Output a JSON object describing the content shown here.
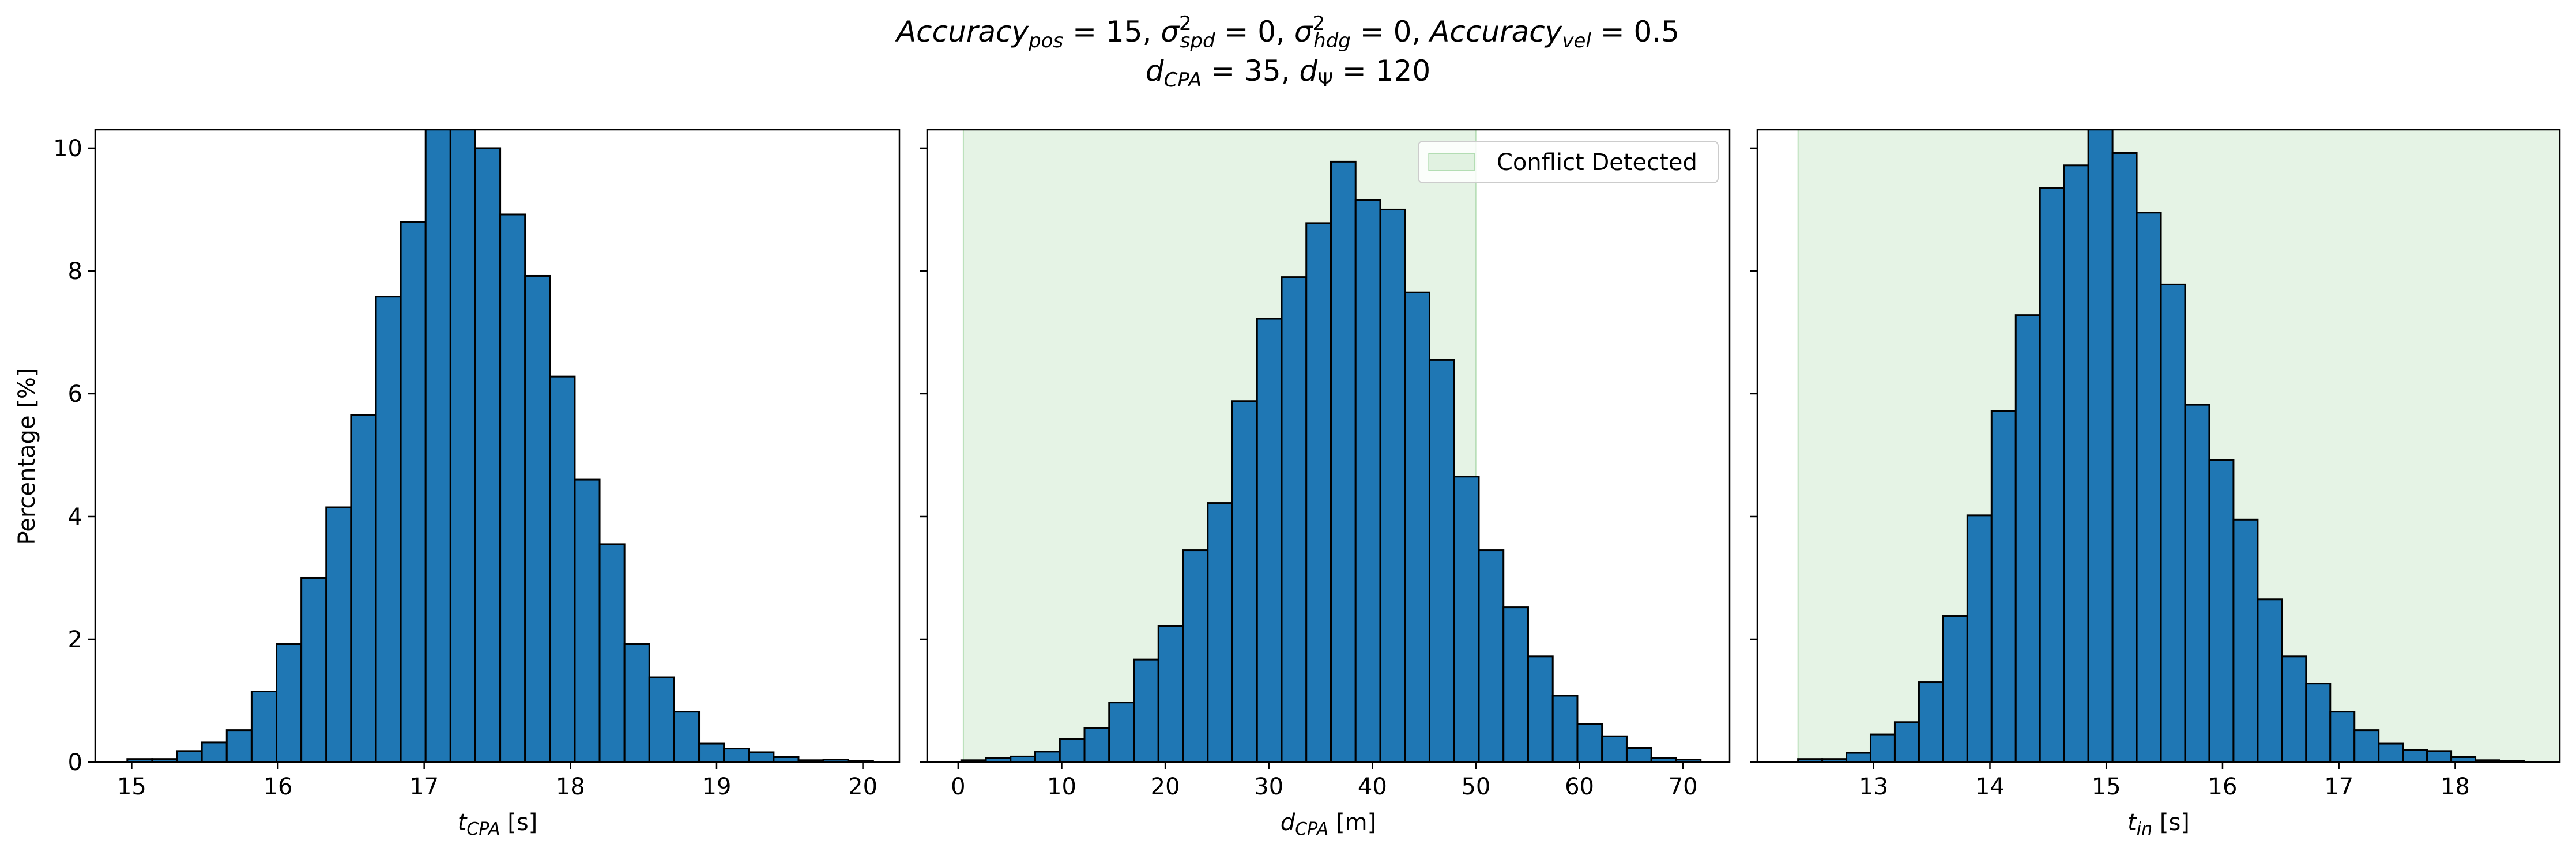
{
  "figure": {
    "title_lines": [
      "Accuracy_pos = 15, σ²_spd = 0, σ²_hdg = 0, Accuracy_vel = 0.5",
      "d_CPA = 35, d_Ψ = 120"
    ],
    "bar_color": "#1f77b4",
    "edge_color": "#000000",
    "shade_color": "#2ca02c"
  },
  "chart_data": [
    {
      "type": "bar",
      "xlabel": "t_CPA [s]",
      "ylabel": "Percentage [%]",
      "xlim": [
        14.75,
        20.25
      ],
      "ylim": [
        0,
        10.3
      ],
      "grid": false,
      "xticks": [
        15,
        16,
        17,
        18,
        19,
        20
      ],
      "yticks": [
        0,
        2,
        4,
        6,
        8,
        10
      ],
      "bin_start": 14.97,
      "bin_width": 0.17,
      "values": [
        0.05,
        0.05,
        0.18,
        0.32,
        0.52,
        1.15,
        1.92,
        3.0,
        4.15,
        5.65,
        7.58,
        8.8,
        10.4,
        10.4,
        10.0,
        8.92,
        7.92,
        6.28,
        4.6,
        3.55,
        1.92,
        1.38,
        0.82,
        0.3,
        0.22,
        0.16,
        0.08,
        0.03,
        0.04,
        0.02
      ]
    },
    {
      "type": "bar",
      "xlabel": "d_CPA [m]",
      "xlim": [
        -3.0,
        74.5
      ],
      "ylim": [
        0,
        10.3
      ],
      "grid": false,
      "xticks": [
        0,
        10,
        20,
        30,
        40,
        50,
        60,
        70
      ],
      "yticks": [
        0,
        2,
        4,
        6,
        8,
        10
      ],
      "bin_start": 0.3,
      "bin_width": 2.38,
      "values": [
        0.03,
        0.07,
        0.09,
        0.17,
        0.38,
        0.55,
        0.97,
        1.67,
        2.22,
        3.45,
        4.22,
        5.88,
        7.22,
        7.9,
        8.78,
        9.78,
        9.15,
        9.0,
        7.65,
        6.55,
        4.65,
        3.45,
        2.52,
        1.72,
        1.08,
        0.62,
        0.42,
        0.23,
        0.07,
        0.04
      ],
      "shaded_region": {
        "x_range": [
          0.5,
          50.0
        ],
        "legend_label": "Conflict Detected"
      },
      "legend": {
        "position": "top-right",
        "entries": [
          "Conflict Detected"
        ]
      }
    },
    {
      "type": "bar",
      "xlabel": "t_in [s]",
      "xlim": [
        12.0,
        18.9
      ],
      "ylim": [
        0,
        10.3
      ],
      "grid": false,
      "xticks": [
        13,
        14,
        15,
        16,
        17,
        18
      ],
      "yticks": [
        0,
        2,
        4,
        6,
        8,
        10
      ],
      "bin_start": 12.35,
      "bin_width": 0.208,
      "values": [
        0.05,
        0.05,
        0.15,
        0.45,
        0.65,
        1.3,
        2.38,
        4.02,
        5.72,
        7.28,
        9.35,
        9.72,
        10.35,
        9.92,
        8.95,
        7.78,
        5.82,
        4.92,
        3.95,
        2.65,
        1.72,
        1.28,
        0.82,
        0.52,
        0.3,
        0.2,
        0.18,
        0.08,
        0.03,
        0.02
      ],
      "shaded_region": {
        "x_range": [
          12.35,
          18.9
        ],
        "legend_label": ""
      }
    }
  ]
}
